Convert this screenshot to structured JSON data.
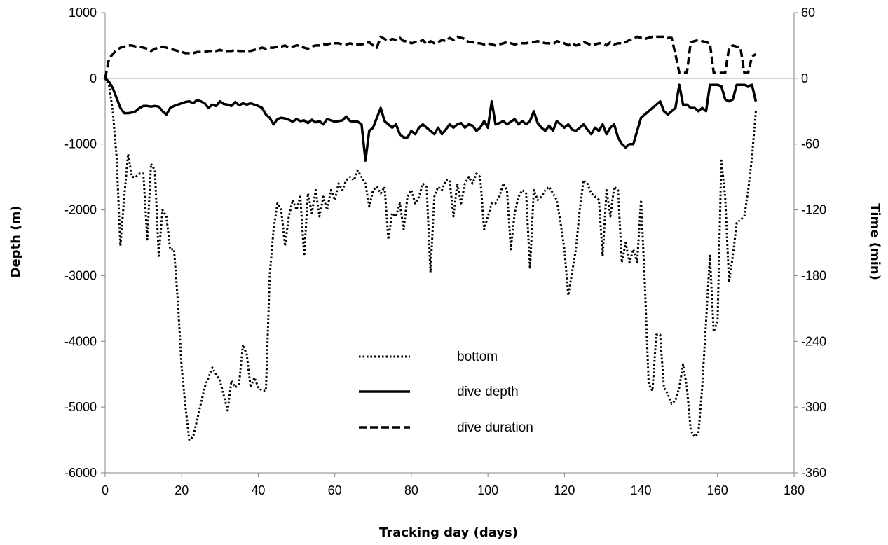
{
  "chart_data": {
    "type": "line",
    "xlabel": "Tracking day (days)",
    "ylabel": "Depth (m)",
    "y2label": "Time (min)",
    "xlim": [
      0,
      180
    ],
    "ylim": [
      -6000,
      1000
    ],
    "y2lim": [
      -360,
      60
    ],
    "x_ticks": [
      0,
      20,
      40,
      60,
      80,
      100,
      120,
      140,
      160,
      180
    ],
    "y_ticks": [
      1000,
      0,
      -1000,
      -2000,
      -3000,
      -4000,
      -5000,
      -6000
    ],
    "y2_ticks": [
      60,
      0,
      -60,
      -120,
      -180,
      -240,
      -300,
      -360
    ],
    "grid": false,
    "legend_position": "lower-center",
    "series": [
      {
        "name": "bottom",
        "axis": "left",
        "line_style": "dotted",
        "color": "#000000",
        "x": [
          0,
          1,
          2,
          3,
          4,
          5,
          6,
          7,
          8,
          9,
          10,
          11,
          12,
          13,
          14,
          15,
          16,
          17,
          18,
          19,
          20,
          21,
          22,
          23,
          24,
          26,
          28,
          30,
          32,
          33,
          34,
          35,
          36,
          37,
          38,
          39,
          40,
          41,
          42,
          43,
          44,
          45,
          46,
          47,
          48,
          49,
          50,
          51,
          52,
          53,
          54,
          55,
          56,
          57,
          58,
          59,
          60,
          61,
          62,
          63,
          64,
          65,
          66,
          67,
          68,
          69,
          70,
          71,
          72,
          73,
          74,
          75,
          76,
          77,
          78,
          79,
          80,
          81,
          82,
          83,
          84,
          85,
          86,
          87,
          88,
          89,
          90,
          91,
          92,
          93,
          94,
          95,
          96,
          97,
          98,
          99,
          100,
          101,
          102,
          103,
          104,
          105,
          106,
          107,
          108,
          109,
          110,
          111,
          112,
          113,
          114,
          115,
          116,
          117,
          118,
          119,
          120,
          121,
          122,
          123,
          124,
          125,
          126,
          127,
          128,
          129,
          130,
          131,
          132,
          133,
          134,
          135,
          136,
          137,
          138,
          139,
          140,
          141,
          142,
          143,
          144,
          145,
          146,
          147,
          148,
          149,
          150,
          151,
          152,
          153,
          154,
          155,
          156,
          157,
          158,
          159,
          160,
          161,
          162,
          163,
          164,
          165,
          166,
          167,
          168,
          169,
          170
        ],
        "values": [
          0,
          -100,
          -500,
          -1200,
          -2550,
          -1800,
          -1150,
          -1500,
          -1500,
          -1450,
          -1450,
          -2450,
          -1300,
          -1400,
          -2700,
          -2000,
          -2100,
          -2600,
          -2600,
          -3400,
          -4400,
          -5000,
          -5500,
          -5450,
          -5200,
          -4700,
          -4400,
          -4600,
          -5050,
          -4600,
          -4700,
          -4650,
          -4050,
          -4200,
          -4700,
          -4550,
          -4700,
          -4750,
          -4750,
          -3000,
          -2300,
          -1900,
          -2000,
          -2550,
          -2100,
          -1850,
          -2000,
          -1800,
          -2700,
          -1750,
          -2050,
          -1700,
          -2100,
          -1800,
          -2000,
          -1700,
          -1850,
          -1600,
          -1700,
          -1550,
          -1500,
          -1550,
          -1400,
          -1500,
          -1600,
          -1950,
          -1700,
          -1650,
          -1750,
          -1650,
          -2450,
          -2050,
          -2100,
          -1900,
          -2300,
          -1800,
          -1700,
          -1900,
          -1800,
          -1600,
          -1650,
          -2950,
          -1800,
          -1650,
          -1700,
          -1550,
          -1550,
          -2100,
          -1600,
          -1900,
          -1600,
          -1500,
          -1600,
          -1450,
          -1500,
          -2300,
          -2100,
          -1900,
          -1900,
          -1800,
          -1600,
          -1700,
          -2600,
          -2050,
          -1800,
          -1700,
          -1750,
          -2900,
          -1700,
          -1850,
          -1800,
          -1700,
          -1650,
          -1750,
          -1850,
          -2200,
          -2600,
          -3300,
          -2950,
          -2600,
          -2000,
          -1550,
          -1600,
          -1750,
          -1800,
          -1850,
          -2700,
          -1700,
          -2100,
          -1650,
          -1700,
          -2800,
          -2500,
          -2800,
          -2600,
          -2800,
          -1850,
          -3100,
          -4650,
          -4750,
          -3900,
          -3900,
          -4700,
          -4800,
          -4950,
          -4900,
          -4700,
          -4350,
          -4700,
          -5350,
          -5450,
          -5400,
          -4700,
          -3700,
          -2700,
          -3850,
          -3700,
          -1250,
          -1800,
          -3100,
          -2700,
          -2200,
          -2150,
          -2100,
          -1700,
          -1200,
          -500
        ]
      },
      {
        "name": "dive depth",
        "axis": "left",
        "line_style": "solid",
        "color": "#000000",
        "x": [
          0,
          1,
          2,
          3,
          4,
          5,
          6,
          7,
          8,
          9,
          10,
          11,
          12,
          13,
          14,
          15,
          16,
          17,
          18,
          19,
          20,
          21,
          22,
          23,
          24,
          25,
          26,
          27,
          28,
          29,
          30,
          31,
          32,
          33,
          34,
          35,
          36,
          37,
          38,
          39,
          40,
          41,
          42,
          43,
          44,
          45,
          46,
          47,
          48,
          49,
          50,
          51,
          52,
          53,
          54,
          55,
          56,
          57,
          58,
          59,
          60,
          61,
          62,
          63,
          64,
          65,
          66,
          67,
          68,
          69,
          70,
          71,
          72,
          73,
          74,
          75,
          76,
          77,
          78,
          79,
          80,
          81,
          82,
          83,
          84,
          85,
          86,
          87,
          88,
          89,
          90,
          91,
          92,
          93,
          94,
          95,
          96,
          97,
          98,
          99,
          100,
          101,
          102,
          103,
          104,
          105,
          106,
          107,
          108,
          109,
          110,
          111,
          112,
          113,
          114,
          115,
          116,
          117,
          118,
          119,
          120,
          121,
          122,
          123,
          124,
          125,
          126,
          127,
          128,
          129,
          130,
          131,
          132,
          133,
          134,
          135,
          136,
          137,
          138,
          139,
          140,
          141,
          142,
          143,
          144,
          145,
          146,
          147,
          148,
          149,
          150,
          151,
          152,
          153,
          154,
          155,
          156,
          157,
          158,
          159,
          160,
          161,
          162,
          163,
          164,
          165,
          166,
          167,
          168,
          169,
          170
        ],
        "values": [
          0,
          -50,
          -150,
          -300,
          -450,
          -530,
          -530,
          -520,
          -500,
          -450,
          -420,
          -420,
          -430,
          -420,
          -430,
          -500,
          -550,
          -450,
          -420,
          -400,
          -380,
          -360,
          -350,
          -380,
          -330,
          -350,
          -380,
          -450,
          -400,
          -420,
          -350,
          -390,
          -400,
          -420,
          -360,
          -410,
          -380,
          -400,
          -380,
          -400,
          -420,
          -450,
          -550,
          -600,
          -700,
          -620,
          -600,
          -610,
          -630,
          -660,
          -620,
          -650,
          -640,
          -680,
          -630,
          -670,
          -650,
          -700,
          -620,
          -640,
          -660,
          -650,
          -640,
          -580,
          -650,
          -660,
          -660,
          -700,
          -1250,
          -800,
          -750,
          -600,
          -450,
          -650,
          -700,
          -750,
          -700,
          -850,
          -900,
          -900,
          -800,
          -850,
          -750,
          -700,
          -750,
          -800,
          -850,
          -750,
          -850,
          -780,
          -700,
          -750,
          -700,
          -680,
          -750,
          -700,
          -720,
          -800,
          -750,
          -650,
          -750,
          -350,
          -700,
          -680,
          -650,
          -700,
          -660,
          -620,
          -700,
          -650,
          -700,
          -650,
          -500,
          -680,
          -750,
          -800,
          -720,
          -800,
          -650,
          -700,
          -750,
          -700,
          -780,
          -800,
          -750,
          -700,
          -780,
          -850,
          -750,
          -800,
          -700,
          -850,
          -750,
          -700,
          -900,
          -1000,
          -1050,
          -1000,
          -1000,
          -800,
          -600,
          -550,
          -500,
          -450,
          -400,
          -350,
          -500,
          -550,
          -500,
          -450,
          -100,
          -400,
          -400,
          -450,
          -450,
          -500,
          -450,
          -500,
          -100,
          -100,
          -100,
          -120,
          -320,
          -350,
          -320,
          -100,
          -100,
          -100,
          -120,
          -100,
          -350
        ]
      },
      {
        "name": "dive duration",
        "axis": "right",
        "line_style": "dashed",
        "color": "#000000",
        "x": [
          0,
          1,
          2,
          3,
          4,
          5,
          6,
          7,
          8,
          9,
          10,
          11,
          12,
          13,
          14,
          15,
          16,
          17,
          18,
          19,
          20,
          21,
          22,
          23,
          24,
          25,
          26,
          27,
          28,
          29,
          30,
          31,
          32,
          33,
          34,
          35,
          36,
          37,
          38,
          39,
          40,
          41,
          42,
          43,
          44,
          45,
          46,
          47,
          48,
          49,
          50,
          51,
          52,
          53,
          54,
          55,
          56,
          57,
          58,
          59,
          60,
          61,
          62,
          63,
          64,
          65,
          66,
          67,
          68,
          69,
          70,
          71,
          72,
          73,
          74,
          75,
          76,
          77,
          78,
          79,
          80,
          81,
          82,
          83,
          84,
          85,
          86,
          87,
          88,
          89,
          90,
          91,
          92,
          93,
          94,
          95,
          96,
          97,
          98,
          99,
          100,
          101,
          102,
          103,
          104,
          105,
          106,
          107,
          108,
          109,
          110,
          111,
          112,
          113,
          114,
          115,
          116,
          117,
          118,
          119,
          120,
          121,
          122,
          123,
          124,
          125,
          126,
          127,
          128,
          129,
          130,
          131,
          132,
          133,
          134,
          135,
          136,
          137,
          138,
          139,
          140,
          141,
          142,
          143,
          144,
          145,
          146,
          147,
          148,
          149,
          150,
          151,
          152,
          153,
          154,
          155,
          156,
          157,
          158,
          159,
          160,
          161,
          162,
          163,
          164,
          165,
          166,
          167,
          168,
          169,
          170
        ],
        "values": [
          0,
          18,
          22,
          26,
          28,
          29,
          30,
          30,
          29,
          29,
          28,
          27,
          25,
          27,
          28,
          29,
          28,
          27,
          26,
          25,
          24,
          23,
          23,
          23,
          24,
          24,
          24,
          25,
          25,
          25,
          26,
          25,
          25,
          25,
          26,
          25,
          25,
          25,
          25,
          26,
          27,
          28,
          27,
          28,
          28,
          29,
          29,
          30,
          28,
          29,
          30,
          30,
          28,
          27,
          29,
          30,
          30,
          31,
          31,
          32,
          32,
          32,
          31,
          31,
          32,
          31,
          31,
          31,
          32,
          33,
          30,
          28,
          38,
          36,
          34,
          36,
          35,
          37,
          34,
          34,
          32,
          33,
          33,
          35,
          31,
          34,
          32,
          33,
          35,
          34,
          37,
          35,
          38,
          37,
          36,
          33,
          33,
          32,
          32,
          31,
          32,
          31,
          30,
          31,
          32,
          33,
          32,
          31,
          32,
          32,
          32,
          33,
          33,
          34,
          33,
          32,
          32,
          31,
          34,
          33,
          32,
          30,
          32,
          30,
          31,
          33,
          32,
          30,
          31,
          32,
          32,
          30,
          33,
          31,
          32,
          32,
          33,
          35,
          36,
          38,
          37,
          36,
          37,
          38,
          38,
          38,
          38,
          37,
          37,
          22,
          5,
          5,
          5,
          33,
          34,
          35,
          34,
          33,
          32,
          5,
          5,
          5,
          5,
          28,
          30,
          29,
          28,
          5,
          5,
          20,
          22
        ]
      }
    ]
  }
}
